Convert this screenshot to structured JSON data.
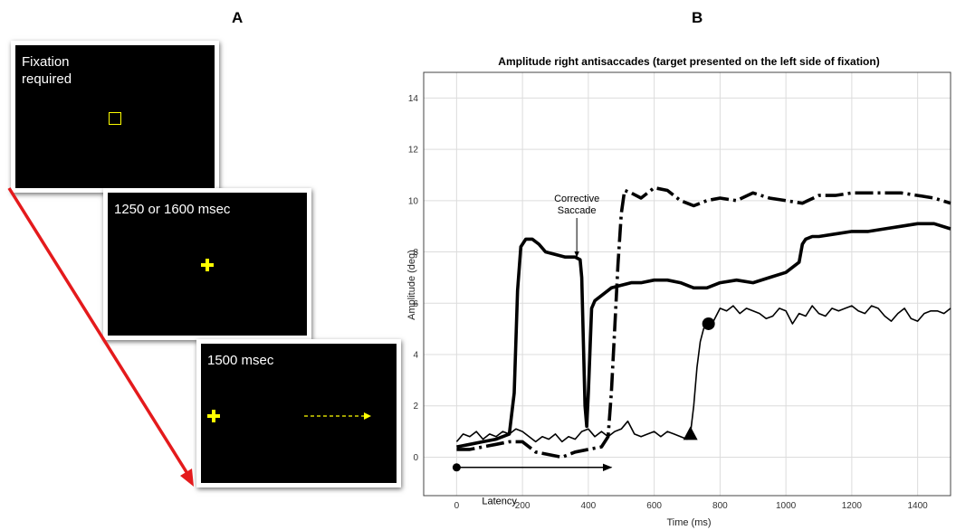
{
  "panel_a": {
    "label": "A",
    "screens": [
      {
        "text": "Fixation\nrequired",
        "stimulus": "hollow-square"
      },
      {
        "text": "1250 or 1600 msec",
        "stimulus": "cross"
      },
      {
        "text": "1500 msec",
        "stimulus": "cross-left-with-dashed-arrow"
      }
    ],
    "stimulus_color": "#ffff00",
    "arrow_color": "#e41a1c"
  },
  "panel_b": {
    "label": "B"
  },
  "chart_data": {
    "type": "line",
    "title": "Amplitude right antisaccades (target presented on the left side of fixation)",
    "xlabel": "Time (ms)",
    "ylabel": "Amplitude (deg)",
    "xlim": [
      -100,
      1500
    ],
    "ylim": [
      -1.5,
      15
    ],
    "xticks": [
      0,
      200,
      400,
      600,
      800,
      1000,
      1200,
      1400
    ],
    "yticks": [
      0,
      2,
      4,
      6,
      8,
      10,
      12,
      14
    ],
    "grid": true,
    "series": [
      {
        "style": "thick-solid",
        "x": [
          0,
          40,
          80,
          120,
          160,
          175,
          185,
          195,
          210,
          230,
          250,
          270,
          300,
          330,
          360,
          375,
          380,
          385,
          390,
          395,
          400,
          410,
          420,
          440,
          470,
          500,
          530,
          560,
          600,
          640,
          680,
          720,
          760,
          800,
          850,
          900,
          950,
          1000,
          1040,
          1050,
          1060,
          1080,
          1100,
          1150,
          1200,
          1250,
          1300,
          1350,
          1400,
          1450,
          1500
        ],
        "y": [
          0.4,
          0.5,
          0.6,
          0.7,
          0.9,
          2.5,
          6.5,
          8.2,
          8.5,
          8.5,
          8.3,
          8.0,
          7.9,
          7.8,
          7.8,
          7.7,
          7.0,
          4.5,
          2.0,
          1.2,
          2.5,
          5.8,
          6.1,
          6.3,
          6.6,
          6.7,
          6.8,
          6.8,
          6.9,
          6.9,
          6.8,
          6.6,
          6.6,
          6.8,
          6.9,
          6.8,
          7.0,
          7.2,
          7.6,
          8.3,
          8.5,
          8.6,
          8.6,
          8.7,
          8.8,
          8.8,
          8.9,
          9.0,
          9.1,
          9.1,
          8.9
        ]
      },
      {
        "style": "thick-dashed",
        "x": [
          0,
          40,
          80,
          120,
          160,
          200,
          240,
          280,
          320,
          360,
          400,
          440,
          460,
          470,
          480,
          490,
          500,
          510,
          530,
          560,
          600,
          640,
          680,
          720,
          760,
          800,
          850,
          900,
          950,
          1000,
          1050,
          1100,
          1150,
          1200,
          1250,
          1300,
          1350,
          1400,
          1450,
          1500
        ],
        "y": [
          0.3,
          0.3,
          0.4,
          0.5,
          0.6,
          0.6,
          0.2,
          0.1,
          0.0,
          0.2,
          0.3,
          0.4,
          0.8,
          2.5,
          5.0,
          7.5,
          9.5,
          10.4,
          10.3,
          10.1,
          10.5,
          10.4,
          10.0,
          9.8,
          10.0,
          10.1,
          10.0,
          10.3,
          10.1,
          10.0,
          9.9,
          10.2,
          10.2,
          10.3,
          10.3,
          10.3,
          10.3,
          10.2,
          10.1,
          9.9
        ]
      },
      {
        "style": "thin-solid",
        "x": [
          0,
          20,
          40,
          60,
          80,
          100,
          120,
          140,
          160,
          180,
          200,
          220,
          240,
          260,
          280,
          300,
          320,
          340,
          360,
          380,
          400,
          420,
          440,
          460,
          480,
          500,
          520,
          540,
          560,
          580,
          600,
          620,
          640,
          660,
          680,
          700,
          710,
          720,
          730,
          740,
          750,
          760,
          780,
          800,
          820,
          840,
          860,
          880,
          900,
          920,
          940,
          960,
          980,
          1000,
          1020,
          1040,
          1060,
          1080,
          1100,
          1120,
          1140,
          1160,
          1180,
          1200,
          1220,
          1240,
          1260,
          1280,
          1300,
          1320,
          1340,
          1360,
          1380,
          1400,
          1420,
          1440,
          1460,
          1480,
          1500
        ],
        "y": [
          0.6,
          0.9,
          0.8,
          1.0,
          0.7,
          0.9,
          0.8,
          1.0,
          0.9,
          1.1,
          1.0,
          0.8,
          0.6,
          0.8,
          0.7,
          0.9,
          0.6,
          0.8,
          0.7,
          1.0,
          1.1,
          0.8,
          1.0,
          0.8,
          1.0,
          1.1,
          1.4,
          0.9,
          0.8,
          0.9,
          1.0,
          0.8,
          1.0,
          0.9,
          0.8,
          0.7,
          0.9,
          2.0,
          3.5,
          4.5,
          5.0,
          5.2,
          5.3,
          5.8,
          5.7,
          5.9,
          5.6,
          5.8,
          5.7,
          5.6,
          5.4,
          5.5,
          5.8,
          5.7,
          5.2,
          5.6,
          5.5,
          5.9,
          5.6,
          5.5,
          5.8,
          5.7,
          5.8,
          5.9,
          5.7,
          5.6,
          5.9,
          5.8,
          5.5,
          5.3,
          5.6,
          5.8,
          5.4,
          5.3,
          5.6,
          5.7,
          5.7,
          5.6,
          5.8
        ]
      }
    ],
    "markers": [
      {
        "shape": "circle",
        "x": 0,
        "y": -0.4
      },
      {
        "shape": "triangle",
        "x": 710,
        "y": 0.85
      },
      {
        "shape": "circle",
        "x": 765,
        "y": 5.2
      }
    ],
    "annotations": [
      {
        "text": "Corrective\nSaccade",
        "x": 365,
        "y": 9.5,
        "arrow_to": [
          365,
          7.7
        ]
      },
      {
        "text": "Latency",
        "x": 130,
        "y": -1.7,
        "arrow_from": [
          0,
          -0.4
        ],
        "arrow_to": [
          470,
          -0.4
        ]
      }
    ]
  }
}
